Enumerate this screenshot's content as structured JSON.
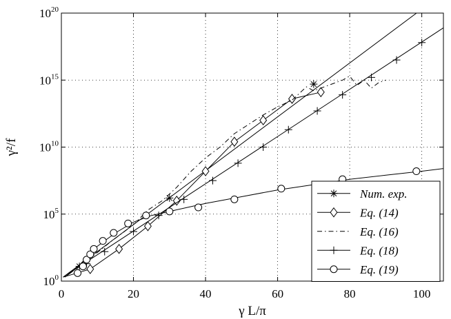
{
  "chart_data": {
    "type": "line",
    "xlabel": "γ L/π",
    "ylabel": "γ²/f",
    "xlim": [
      0,
      106
    ],
    "ylim_log10": [
      0,
      20
    ],
    "yscale": "log",
    "grid": true,
    "legend_position": "bottom-right",
    "x_ticks": [
      0,
      20,
      40,
      60,
      80,
      100
    ],
    "y_ticks": [
      {
        "exp": 0,
        "base": "10",
        "sup": "0"
      },
      {
        "exp": 5,
        "base": "10",
        "sup": "5"
      },
      {
        "exp": 10,
        "base": "10",
        "sup": "10"
      },
      {
        "exp": 15,
        "base": "10",
        "sup": "15"
      },
      {
        "exp": 20,
        "base": "10",
        "sup": "20"
      }
    ],
    "series": [
      {
        "name": "Num. exp.",
        "marker": "star",
        "style": "solid",
        "line": [
          [
            0.5,
            0.3
          ],
          [
            106,
            21.5
          ]
        ],
        "points": [
          [
            5,
            1.1
          ],
          [
            30,
            6.2
          ],
          [
            70,
            14.7
          ]
        ]
      },
      {
        "name": "Eq. (14)",
        "marker": "diamond",
        "style": "solid",
        "line": [
          [
            0.5,
            0.3
          ],
          [
            8,
            0.9
          ],
          [
            16,
            2.4
          ],
          [
            24,
            4.1
          ],
          [
            32,
            6.0
          ],
          [
            40,
            8.2
          ],
          [
            48,
            10.4
          ],
          [
            56,
            12.0
          ],
          [
            64,
            13.6
          ],
          [
            72,
            14.1
          ]
        ],
        "points": [
          [
            8,
            0.9
          ],
          [
            16,
            2.4
          ],
          [
            24,
            4.1
          ],
          [
            32,
            6.0
          ],
          [
            40,
            8.2
          ],
          [
            48,
            10.4
          ],
          [
            56,
            12.0
          ],
          [
            64,
            13.6
          ],
          [
            72,
            14.1
          ]
        ]
      },
      {
        "name": "Eq. (16)",
        "marker": "none",
        "style": "dashdot",
        "line": [
          [
            2,
            0.6
          ],
          [
            8,
            1.7
          ],
          [
            14,
            3.0
          ],
          [
            20,
            4.2
          ],
          [
            24,
            5.3
          ],
          [
            28,
            6.0
          ],
          [
            32,
            7.0
          ],
          [
            36,
            8.2
          ],
          [
            40,
            9.2
          ],
          [
            44,
            10.0
          ],
          [
            48,
            11.0
          ],
          [
            52,
            11.7
          ],
          [
            56,
            12.4
          ],
          [
            60,
            13.0
          ],
          [
            64,
            13.5
          ],
          [
            66,
            14.0
          ],
          [
            68,
            14.5
          ],
          [
            70,
            14.2
          ],
          [
            74,
            14.6
          ],
          [
            78,
            15.0
          ],
          [
            80,
            15.3
          ],
          [
            82,
            14.6
          ],
          [
            84,
            15.0
          ],
          [
            86,
            14.4
          ],
          [
            88,
            14.8
          ],
          [
            90,
            15.0
          ]
        ],
        "points": []
      },
      {
        "name": "Eq. (18)",
        "marker": "plus",
        "style": "solid",
        "line": [
          [
            0.5,
            0.3
          ],
          [
            106,
            18.9
          ]
        ],
        "points": [
          [
            7,
            1.3
          ],
          [
            12,
            2.2
          ],
          [
            20,
            3.7
          ],
          [
            27,
            4.9
          ],
          [
            34,
            6.1
          ],
          [
            42,
            7.5
          ],
          [
            49,
            8.8
          ],
          [
            56,
            10.0
          ],
          [
            63,
            11.3
          ],
          [
            71,
            12.7
          ],
          [
            78,
            13.9
          ],
          [
            86,
            15.2
          ],
          [
            93,
            16.5
          ],
          [
            100,
            17.8
          ]
        ]
      },
      {
        "name": "Eq. (19)",
        "marker": "circle",
        "style": "solid",
        "line": [
          [
            1,
            0.3
          ],
          [
            3,
            0.7
          ],
          [
            5,
            1.2
          ],
          [
            10,
            2.6
          ],
          [
            15,
            3.6
          ],
          [
            20,
            4.4
          ],
          [
            25,
            4.9
          ],
          [
            30,
            5.2
          ],
          [
            35,
            5.5
          ],
          [
            40,
            5.8
          ],
          [
            50,
            6.3
          ],
          [
            60,
            6.8
          ],
          [
            70,
            7.2
          ],
          [
            80,
            7.6
          ],
          [
            90,
            7.9
          ],
          [
            100,
            8.2
          ],
          [
            106,
            8.4
          ]
        ],
        "points": [
          [
            4.5,
            0.6
          ],
          [
            6,
            1.1
          ],
          [
            7,
            1.6
          ],
          [
            8,
            2.0
          ],
          [
            9,
            2.4
          ],
          [
            11.5,
            3.0
          ],
          [
            14.5,
            3.6
          ],
          [
            18.5,
            4.3
          ],
          [
            23.5,
            4.9
          ],
          [
            30,
            5.2
          ],
          [
            38,
            5.5
          ],
          [
            48,
            6.1
          ],
          [
            61,
            6.9
          ],
          [
            78,
            7.6
          ],
          [
            98.5,
            8.2
          ]
        ]
      }
    ]
  }
}
